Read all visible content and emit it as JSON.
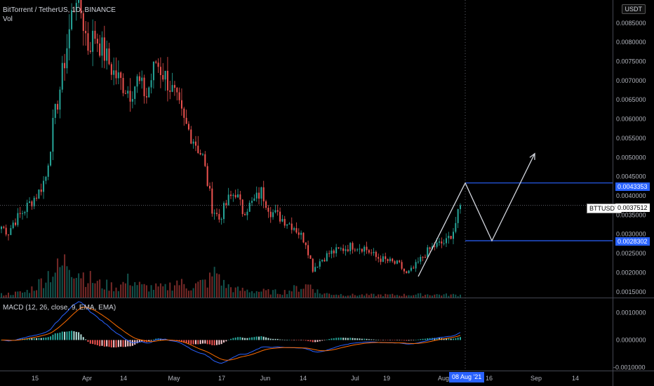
{
  "header": {
    "title": "BitTorrent / TetherUS, 1D, BINANCE",
    "volume_label": "Vol",
    "currency_button": "USDT",
    "macd_label": "MACD (12, 26, close, 9, EMA, EMA)"
  },
  "price_labels": {
    "resistance": "0.0043353",
    "current_tag": "BTTUSDT",
    "current": "0.0037512",
    "support": "0.0028302"
  },
  "date_pill": "08 Aug '21",
  "colors": {
    "up": "#26a69a",
    "down": "#ef5350",
    "level_line": "#2962ff",
    "macd_line": "#2962ff",
    "signal_line": "#ff6d00",
    "background": "#000000"
  },
  "chart_data": {
    "type": "candlestick",
    "price_axis": {
      "ticks": [
        "0.0085000",
        "0.0080000",
        "0.0075000",
        "0.0070000",
        "0.0065000",
        "0.0060000",
        "0.0055000",
        "0.0050000",
        "0.0045000",
        "0.0040000",
        "0.0035000",
        "0.0030000",
        "0.0025000",
        "0.0020000",
        "0.0015000"
      ],
      "range": [
        0.00135,
        0.0091
      ]
    },
    "macd_axis": {
      "ticks": [
        "0.0010000",
        "0.0000000",
        "-0.0010000"
      ],
      "range": [
        -0.00112,
        0.00153
      ]
    },
    "time_axis": [
      "15",
      "Apr",
      "14",
      "May",
      "17",
      "Jun",
      "14",
      "Jul",
      "19",
      "Aug",
      "16",
      "Sep",
      "14"
    ],
    "horizontal_levels": [
      0.0043353,
      0.0028302
    ],
    "current_price": 0.0037512,
    "projection": [
      [
        0.0043353,
        0.0028302
      ],
      [
        0.0028302,
        0.0051
      ]
    ],
    "candles": {
      "anchors": [
        [
          0,
          0.0032
        ],
        [
          3,
          0.00305
        ],
        [
          5,
          0.0033
        ],
        [
          8,
          0.0035
        ],
        [
          12,
          0.0038
        ],
        [
          16,
          0.0041
        ],
        [
          19,
          0.0045
        ],
        [
          22,
          0.0058
        ],
        [
          25,
          0.0068
        ],
        [
          28,
          0.0079
        ],
        [
          30,
          0.0087
        ],
        [
          32,
          0.0093
        ],
        [
          34,
          0.0088
        ],
        [
          37,
          0.0079
        ],
        [
          40,
          0.0082
        ],
        [
          44,
          0.0077
        ],
        [
          48,
          0.0072
        ],
        [
          52,
          0.0069
        ],
        [
          55,
          0.0067
        ],
        [
          58,
          0.007
        ],
        [
          62,
          0.0066
        ],
        [
          66,
          0.0075
        ],
        [
          70,
          0.0071
        ],
        [
          74,
          0.0066
        ],
        [
          78,
          0.0059
        ],
        [
          82,
          0.0055
        ],
        [
          86,
          0.005
        ],
        [
          90,
          0.0037
        ],
        [
          93,
          0.0034
        ],
        [
          97,
          0.0039
        ],
        [
          100,
          0.0041
        ],
        [
          103,
          0.0036
        ],
        [
          107,
          0.0038
        ],
        [
          111,
          0.0041
        ],
        [
          115,
          0.0036
        ],
        [
          120,
          0.0034
        ],
        [
          125,
          0.0032
        ],
        [
          130,
          0.0028
        ],
        [
          133,
          0.0021
        ],
        [
          136,
          0.0023
        ],
        [
          140,
          0.0025
        ],
        [
          145,
          0.0026
        ],
        [
          150,
          0.0027
        ],
        [
          155,
          0.00265
        ],
        [
          160,
          0.0024
        ],
        [
          165,
          0.0023
        ],
        [
          170,
          0.0022
        ],
        [
          173,
          0.00195
        ],
        [
          176,
          0.0021
        ],
        [
          181,
          0.0025
        ],
        [
          185,
          0.0027
        ],
        [
          190,
          0.0028
        ],
        [
          193,
          0.0031
        ],
        [
          196,
          0.0037
        ]
      ],
      "count": 197
    },
    "volume": {
      "anchors": [
        [
          0,
          0.06
        ],
        [
          10,
          0.1
        ],
        [
          15,
          0.22
        ],
        [
          20,
          0.45
        ],
        [
          25,
          0.55
        ],
        [
          28,
          0.7
        ],
        [
          32,
          0.55
        ],
        [
          36,
          0.4
        ],
        [
          42,
          0.25
        ],
        [
          50,
          0.2
        ],
        [
          55,
          0.35
        ],
        [
          60,
          0.2
        ],
        [
          70,
          0.18
        ],
        [
          75,
          0.3
        ],
        [
          80,
          0.2
        ],
        [
          88,
          0.3
        ],
        [
          92,
          0.5
        ],
        [
          95,
          0.25
        ],
        [
          100,
          0.15
        ],
        [
          110,
          0.12
        ],
        [
          120,
          0.1
        ],
        [
          132,
          0.25
        ],
        [
          136,
          0.08
        ],
        [
          150,
          0.05
        ],
        [
          170,
          0.05
        ],
        [
          182,
          0.06
        ],
        [
          196,
          0.05
        ]
      ],
      "max_ratio": 1.0
    }
  }
}
